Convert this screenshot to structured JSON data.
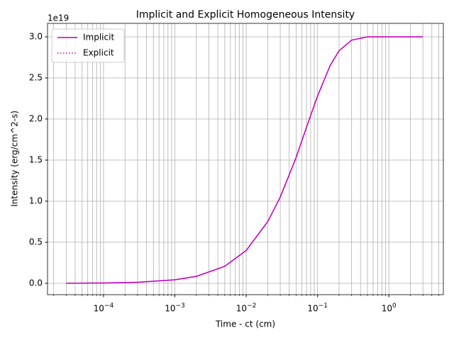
{
  "chart_data": {
    "type": "line",
    "title": "Implicit and Explicit Homogeneous Intensity",
    "xlabel": "Time - ct (cm)",
    "ylabel": "Intensity (erg/cm^2-s)",
    "y_offset_label": "1e19",
    "x": [
      3e-05,
      0.0001,
      0.0003,
      0.001,
      0.002,
      0.005,
      0.01,
      0.02,
      0.03,
      0.05,
      0.07,
      0.1,
      0.15,
      0.2,
      0.3,
      0.5,
      1,
      3
    ],
    "series": [
      {
        "name": "Implicit",
        "color": "#bf00bf",
        "linestyle": "solid",
        "values": [
          0.001,
          0.004,
          0.013,
          0.043,
          0.085,
          0.207,
          0.4,
          0.75,
          1.05,
          1.53,
          1.9,
          2.28,
          2.65,
          2.83,
          2.96,
          3.0,
          3.0,
          3.0
        ]
      },
      {
        "name": "Explicit",
        "color": "#bf00bf",
        "linestyle": "dotted",
        "values": [
          0.001,
          0.004,
          0.013,
          0.043,
          0.085,
          0.207,
          0.4,
          0.75,
          1.05,
          1.53,
          1.9,
          2.28,
          2.65,
          2.83,
          2.96,
          3.0,
          3.0,
          3.0
        ]
      }
    ],
    "xscale": "log",
    "xlim": [
      1.64e-05,
      5.8
    ],
    "xticks": [
      {
        "value": 0.0001,
        "label": "10^-4"
      },
      {
        "value": 0.001,
        "label": "10^-3"
      },
      {
        "value": 0.01,
        "label": "10^-2"
      },
      {
        "value": 0.1,
        "label": "10^-1"
      },
      {
        "value": 1,
        "label": "10^0"
      }
    ],
    "ylim": [
      -0.138,
      3.164
    ],
    "yticks": [
      {
        "value": 0,
        "label": "0.0"
      },
      {
        "value": 0.5,
        "label": "0.5"
      },
      {
        "value": 1,
        "label": "1.0"
      },
      {
        "value": 1.5,
        "label": "1.5"
      },
      {
        "value": 2,
        "label": "2.0"
      },
      {
        "value": 2.5,
        "label": "2.5"
      },
      {
        "value": 3,
        "label": "3.0"
      }
    ],
    "grid": true,
    "minor_grid": true,
    "legend": "upper left"
  }
}
